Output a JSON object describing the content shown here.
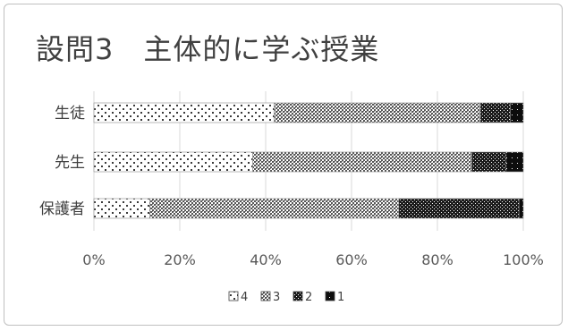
{
  "chart_data": {
    "type": "bar",
    "orientation": "horizontal",
    "stacked": "percent",
    "title": "設問3　主体的に学ぶ授業",
    "categories": [
      "生徒",
      "先生",
      "保護者"
    ],
    "series": [
      {
        "name": "4",
        "values": [
          42,
          37,
          13
        ]
      },
      {
        "name": "3",
        "values": [
          48,
          51,
          58
        ]
      },
      {
        "name": "2",
        "values": [
          7,
          8,
          28
        ]
      },
      {
        "name": "1",
        "values": [
          3,
          4,
          1
        ]
      }
    ],
    "xlim": [
      0,
      100
    ],
    "xticks": [
      "0%",
      "20%",
      "40%",
      "60%",
      "80%",
      "100%"
    ],
    "grid": true,
    "legend_position": "bottom"
  }
}
